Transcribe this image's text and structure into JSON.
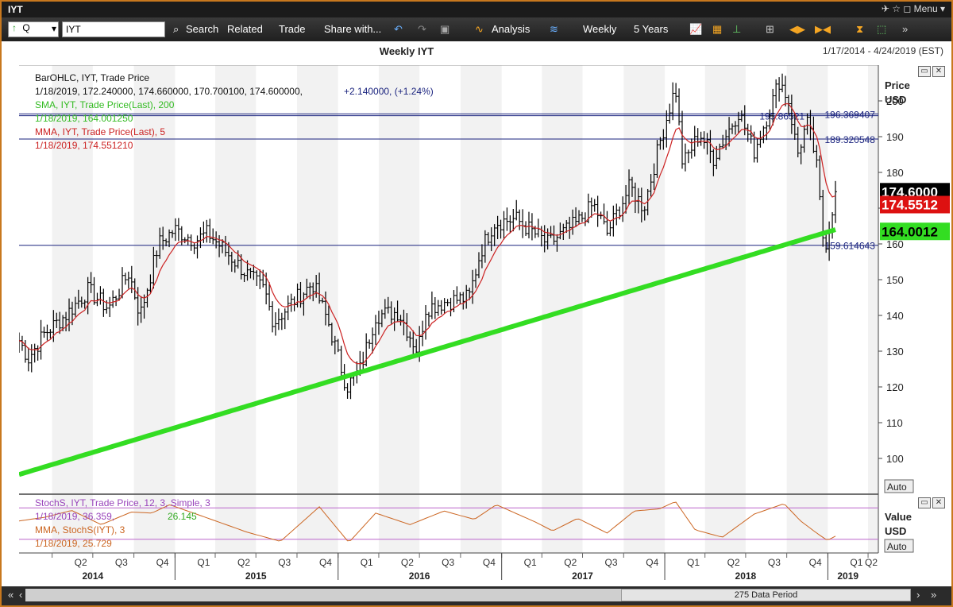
{
  "window": {
    "title": "IYT",
    "controls": "✈ ☆ ◻ Menu ▾"
  },
  "toolbar": {
    "symbol_type": "Q",
    "symbol_value": "IYT",
    "search": "Search",
    "related": "Related",
    "trade": "Trade",
    "share": "Share with...",
    "analysis": "Analysis",
    "period": "Weekly",
    "range": "5 Years"
  },
  "chart": {
    "title": "Weekly IYT",
    "date_range": "1/17/2014 - 4/24/2019 (EST)",
    "price_axis_label_1": "Price",
    "price_axis_label_2": "USD",
    "auto_label": "Auto",
    "value_axis_label_1": "Value",
    "value_axis_label_2": "USD"
  },
  "legend": {
    "ohlc_title": "BarOHLC, IYT, Trade Price",
    "ohlc_values": "1/18/2019, 172.240000, 174.660000, 170.700100, 174.600000,",
    "ohlc_change": "+2.140000, (+1.24%)",
    "sma_title": "SMA, IYT, Trade Price(Last), 200",
    "sma_value": "1/18/2019, 164.001250",
    "mma_title": "MMA, IYT, Trade Price(Last), 5",
    "mma_value": "1/18/2019, 174.551210",
    "stoch_title": "StochS, IYT, Trade Price, 12, 3, Simple, 3",
    "stoch_value_1": "1/18/2019, 36.359,",
    "stoch_value_2": "26.145",
    "stoch_mma_title": "MMA, StochS(IYT), 3",
    "stoch_mma_value": "1/18/2019, 25.729"
  },
  "footer": {
    "data_period": "275 Data Period"
  },
  "colors": {
    "bars": "#000000",
    "sma": "#33dd22",
    "mma": "#cc2222",
    "hline": "#1a237e",
    "stoch_line": "#cc6622",
    "stoch_level": "#bb66cc",
    "last_price_bg": "#000000",
    "mma_badge_bg": "#dd1111",
    "sma_badge_bg": "#33dd22"
  },
  "chart_data": {
    "type": "line",
    "x_range": [
      "2014-01-17",
      "2019-04-24"
    ],
    "y_range": [
      90,
      210
    ],
    "y_ticks": [
      100,
      110,
      120,
      130,
      140,
      150,
      160,
      170,
      180,
      190,
      200
    ],
    "quarter_labels": [
      {
        "q": "Q2",
        "d": "2014-04-01"
      },
      {
        "q": "Q3",
        "d": "2014-07-01"
      },
      {
        "q": "Q4",
        "d": "2014-10-01"
      },
      {
        "q": "Q1",
        "d": "2015-01-01"
      },
      {
        "q": "Q2",
        "d": "2015-04-01"
      },
      {
        "q": "Q3",
        "d": "2015-07-01"
      },
      {
        "q": "Q4",
        "d": "2015-10-01"
      },
      {
        "q": "Q1",
        "d": "2016-01-01"
      },
      {
        "q": "Q2",
        "d": "2016-04-01"
      },
      {
        "q": "Q3",
        "d": "2016-07-01"
      },
      {
        "q": "Q4",
        "d": "2016-10-01"
      },
      {
        "q": "Q1",
        "d": "2017-01-01"
      },
      {
        "q": "Q2",
        "d": "2017-04-01"
      },
      {
        "q": "Q3",
        "d": "2017-07-01"
      },
      {
        "q": "Q4",
        "d": "2017-10-01"
      },
      {
        "q": "Q1",
        "d": "2018-01-01"
      },
      {
        "q": "Q2",
        "d": "2018-04-01"
      },
      {
        "q": "Q3",
        "d": "2018-07-01"
      },
      {
        "q": "Q4",
        "d": "2018-10-01"
      },
      {
        "q": "Q1",
        "d": "2019-01-01"
      },
      {
        "q": "Q2",
        "d": "2019-04-01"
      }
    ],
    "year_labels": [
      {
        "y": "2014",
        "d": "2014-07-01"
      },
      {
        "y": "2015",
        "d": "2015-07-01"
      },
      {
        "y": "2016",
        "d": "2016-07-01"
      },
      {
        "y": "2017",
        "d": "2017-07-01"
      },
      {
        "y": "2018",
        "d": "2018-07-01"
      },
      {
        "y": "2019",
        "d": "2019-02-15"
      }
    ],
    "horizontal_lines": [
      {
        "value": 196.369407,
        "label": "196.369407",
        "label_d": "2018-12-25"
      },
      {
        "value": 195.865217,
        "label": "195.86521",
        "label_d": "2018-08-01"
      },
      {
        "value": 189.320548,
        "label": "189.320548",
        "label_d": "2018-12-25"
      },
      {
        "value": 159.614643,
        "label": "159.614643",
        "label_d": "2018-12-25"
      }
    ],
    "badges": {
      "last_price": "174.6000",
      "mma": "174.5512",
      "sma": "164.0012"
    },
    "price_keypoints": [
      [
        "2014-01-17",
        133
      ],
      [
        "2014-02-07",
        128
      ],
      [
        "2014-03-15",
        135
      ],
      [
        "2014-05-01",
        140
      ],
      [
        "2014-06-20",
        147
      ],
      [
        "2014-08-05",
        142
      ],
      [
        "2014-09-20",
        152
      ],
      [
        "2014-10-15",
        140
      ],
      [
        "2014-11-25",
        160
      ],
      [
        "2014-12-31",
        164
      ],
      [
        "2015-02-15",
        161
      ],
      [
        "2015-03-15",
        163
      ],
      [
        "2015-05-01",
        157
      ],
      [
        "2015-06-15",
        151
      ],
      [
        "2015-07-20",
        147
      ],
      [
        "2015-08-10",
        138
      ],
      [
        "2015-09-15",
        143
      ],
      [
        "2015-11-05",
        149
      ],
      [
        "2015-12-10",
        138
      ],
      [
        "2016-01-20",
        120
      ],
      [
        "2016-02-20",
        125
      ],
      [
        "2016-03-25",
        140
      ],
      [
        "2016-05-15",
        141
      ],
      [
        "2016-06-27",
        130
      ],
      [
        "2016-07-15",
        142
      ],
      [
        "2016-09-01",
        144
      ],
      [
        "2016-10-20",
        145
      ],
      [
        "2016-11-15",
        158
      ],
      [
        "2016-12-15",
        166
      ],
      [
        "2017-02-01",
        167
      ],
      [
        "2017-04-15",
        160
      ],
      [
        "2017-06-20",
        166
      ],
      [
        "2017-07-25",
        171
      ],
      [
        "2017-08-25",
        163
      ],
      [
        "2017-10-15",
        176
      ],
      [
        "2017-11-15",
        170
      ],
      [
        "2017-12-20",
        188
      ],
      [
        "2018-01-25",
        204
      ],
      [
        "2018-02-10",
        182
      ],
      [
        "2018-03-20",
        191
      ],
      [
        "2018-04-20",
        184
      ],
      [
        "2018-06-15",
        197
      ],
      [
        "2018-07-20",
        186
      ],
      [
        "2018-08-25",
        198
      ],
      [
        "2018-09-15",
        206
      ],
      [
        "2018-10-05",
        200
      ],
      [
        "2018-10-25",
        185
      ],
      [
        "2018-11-15",
        194
      ],
      [
        "2018-12-05",
        184
      ],
      [
        "2018-12-24",
        158
      ],
      [
        "2019-01-18",
        174.6
      ]
    ],
    "stoch_levels": [
      80,
      20
    ],
    "stoch_keypoints": [
      [
        "2014-01-17",
        55
      ],
      [
        "2014-03-15",
        62
      ],
      [
        "2014-05-15",
        75
      ],
      [
        "2014-07-20",
        48
      ],
      [
        "2014-09-25",
        72
      ],
      [
        "2014-11-10",
        70
      ],
      [
        "2014-12-20",
        86
      ],
      [
        "2015-03-10",
        62
      ],
      [
        "2015-06-10",
        34
      ],
      [
        "2015-08-25",
        16
      ],
      [
        "2015-11-20",
        82
      ],
      [
        "2016-01-25",
        14
      ],
      [
        "2016-03-25",
        70
      ],
      [
        "2016-06-10",
        48
      ],
      [
        "2016-08-25",
        74
      ],
      [
        "2016-11-01",
        58
      ],
      [
        "2016-12-20",
        86
      ],
      [
        "2017-03-20",
        52
      ],
      [
        "2017-04-25",
        36
      ],
      [
        "2017-06-20",
        60
      ],
      [
        "2017-08-25",
        32
      ],
      [
        "2017-10-25",
        74
      ],
      [
        "2017-12-20",
        78
      ],
      [
        "2018-01-25",
        92
      ],
      [
        "2018-03-10",
        38
      ],
      [
        "2018-05-10",
        24
      ],
      [
        "2018-07-20",
        68
      ],
      [
        "2018-09-25",
        88
      ],
      [
        "2018-11-01",
        55
      ],
      [
        "2018-12-10",
        30
      ],
      [
        "2018-12-31",
        18
      ],
      [
        "2019-01-18",
        26
      ]
    ]
  }
}
